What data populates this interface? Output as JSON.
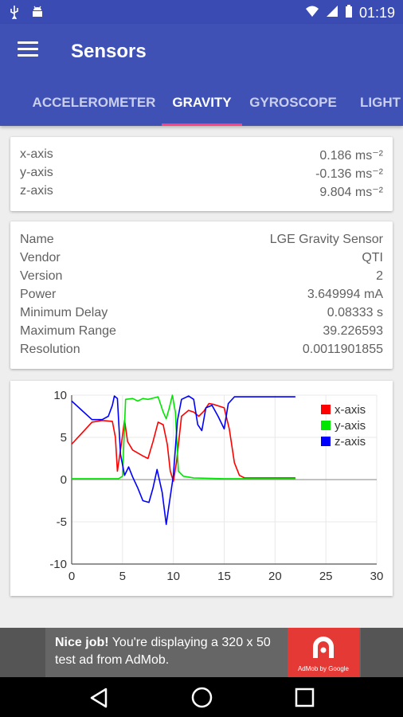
{
  "status_bar": {
    "time": "01:19"
  },
  "app": {
    "title": "Sensors"
  },
  "tabs": [
    {
      "label": "ACCELEROMETER"
    },
    {
      "label": "GRAVITY"
    },
    {
      "label": "GYROSCOPE"
    },
    {
      "label": "LIGHT"
    }
  ],
  "axes_card": {
    "rows": [
      {
        "key": "x-axis",
        "value": "0.186 ms⁻²"
      },
      {
        "key": "y-axis",
        "value": "-0.136 ms⁻²"
      },
      {
        "key": "z-axis",
        "value": "9.804 ms⁻²"
      }
    ]
  },
  "info_card": {
    "rows": [
      {
        "key": "Name",
        "value": "LGE Gravity Sensor"
      },
      {
        "key": "Vendor",
        "value": "QTI"
      },
      {
        "key": "Version",
        "value": "2"
      },
      {
        "key": "Power",
        "value": "3.649994 mA"
      },
      {
        "key": "Minimum Delay",
        "value": "0.08333 s"
      },
      {
        "key": "Maximum Range",
        "value": "39.226593"
      },
      {
        "key": "Resolution",
        "value": "0.0011901855"
      }
    ]
  },
  "chart_data": {
    "type": "line",
    "xlim": [
      0,
      30
    ],
    "ylim": [
      -10,
      10
    ],
    "x_ticks": [
      "0",
      "5",
      "10",
      "15",
      "20",
      "25",
      "30"
    ],
    "y_ticks": [
      "10",
      "5",
      "0",
      "-5",
      "-10"
    ],
    "legend_position": "top-right",
    "series": [
      {
        "name": "x-axis",
        "color": "#ff0000",
        "points": [
          [
            0,
            4.2
          ],
          [
            1,
            5.5
          ],
          [
            2,
            6.8
          ],
          [
            3,
            7.0
          ],
          [
            4,
            6.9
          ],
          [
            4.3,
            5.0
          ],
          [
            4.5,
            1.0
          ],
          [
            4.8,
            3.5
          ],
          [
            5.2,
            7.0
          ],
          [
            5.5,
            4.5
          ],
          [
            6,
            3.5
          ],
          [
            7,
            2.8
          ],
          [
            7.5,
            2.5
          ],
          [
            8,
            4.5
          ],
          [
            8.5,
            6.8
          ],
          [
            9,
            6.5
          ],
          [
            9.4,
            4.2
          ],
          [
            9.7,
            1.0
          ],
          [
            10,
            -0.2
          ],
          [
            10.3,
            2.0
          ],
          [
            10.8,
            7.5
          ],
          [
            11.5,
            8.2
          ],
          [
            12,
            8.0
          ],
          [
            12.5,
            7.5
          ],
          [
            13,
            8.1
          ],
          [
            13.5,
            9.0
          ],
          [
            14,
            8.9
          ],
          [
            15,
            8.5
          ],
          [
            15.5,
            6.0
          ],
          [
            16,
            2.0
          ],
          [
            16.5,
            0.5
          ],
          [
            17,
            0.2
          ],
          [
            18,
            0.2
          ],
          [
            20,
            0.2
          ],
          [
            22,
            0.2
          ]
        ]
      },
      {
        "name": "y-axis",
        "color": "#00e600",
        "points": [
          [
            0,
            0.1
          ],
          [
            2,
            0.1
          ],
          [
            4,
            0.1
          ],
          [
            4.6,
            0.1
          ],
          [
            5,
            0.4
          ],
          [
            5.3,
            9.5
          ],
          [
            6,
            9.6
          ],
          [
            6.5,
            9.3
          ],
          [
            7,
            9.6
          ],
          [
            7.5,
            9.5
          ],
          [
            8.5,
            9.8
          ],
          [
            9,
            8.0
          ],
          [
            9.3,
            7.2
          ],
          [
            9.6,
            8.5
          ],
          [
            9.9,
            10.0
          ],
          [
            10.2,
            8.0
          ],
          [
            10.5,
            1.0
          ],
          [
            11,
            0.4
          ],
          [
            12,
            0.2
          ],
          [
            15,
            0.1
          ],
          [
            18,
            0.1
          ],
          [
            22,
            0.1
          ]
        ]
      },
      {
        "name": "z-axis",
        "color": "#0000ff",
        "points": [
          [
            0,
            9.3
          ],
          [
            1,
            8.2
          ],
          [
            2,
            7.1
          ],
          [
            3,
            7.1
          ],
          [
            3.6,
            7.5
          ],
          [
            4,
            8.8
          ],
          [
            4.2,
            9.9
          ],
          [
            4.5,
            9.6
          ],
          [
            4.8,
            3.0
          ],
          [
            5.2,
            0.5
          ],
          [
            5.6,
            1.5
          ],
          [
            6,
            0.3
          ],
          [
            6.5,
            -1.0
          ],
          [
            7,
            -2.5
          ],
          [
            7.6,
            -2.7
          ],
          [
            8,
            -1.0
          ],
          [
            8.4,
            1.2
          ],
          [
            8.9,
            -1.5
          ],
          [
            9.3,
            -5.3
          ],
          [
            9.7,
            -2.0
          ],
          [
            10,
            0.5
          ],
          [
            10.4,
            7.0
          ],
          [
            10.8,
            9.5
          ],
          [
            11.5,
            9.9
          ],
          [
            12,
            9.5
          ],
          [
            12.4,
            6.5
          ],
          [
            12.8,
            5.8
          ],
          [
            13.2,
            8.5
          ],
          [
            13.8,
            8.8
          ],
          [
            14.4,
            7.5
          ],
          [
            15,
            6.0
          ],
          [
            15.4,
            9.0
          ],
          [
            16,
            9.8
          ],
          [
            18,
            9.8
          ],
          [
            20,
            9.8
          ],
          [
            22,
            9.8
          ]
        ]
      }
    ]
  },
  "ad": {
    "headline": "Nice job!",
    "body": " You're displaying a 320 x 50 test ad from AdMob.",
    "badge": "AdMob by Google"
  }
}
